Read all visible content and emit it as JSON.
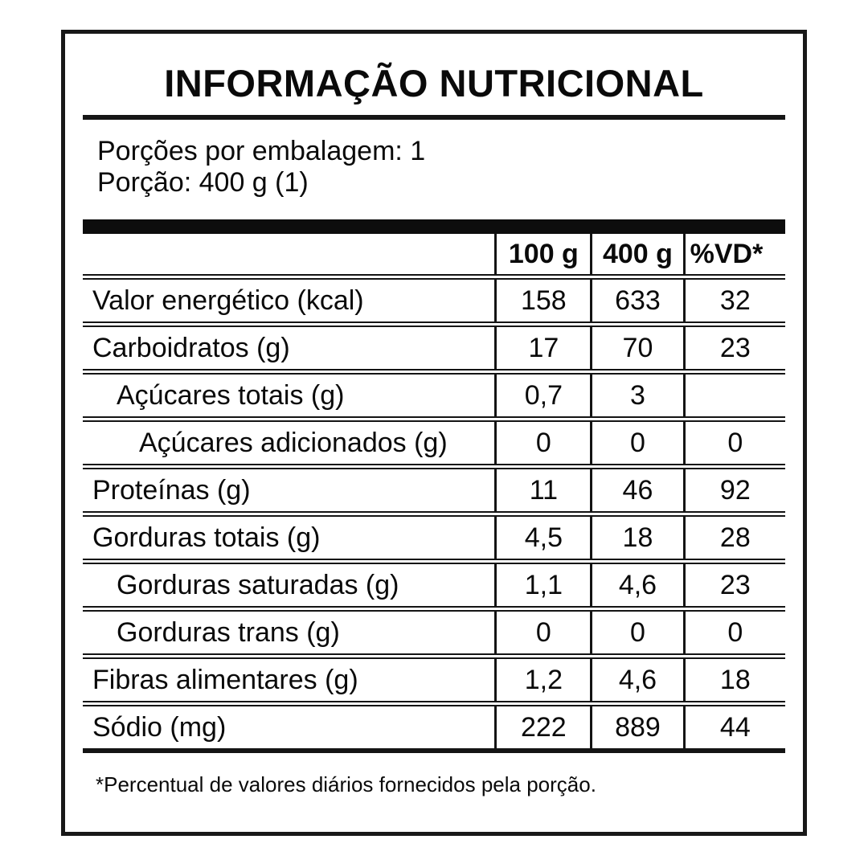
{
  "title": "INFORMAÇÃO NUTRICIONAL",
  "serving_info": {
    "servings_per_package": "Porções por embalagem: 1",
    "serving_size": "Porção: 400 g (1)"
  },
  "table": {
    "columns": [
      "",
      "100 g",
      "400 g",
      "%VD*"
    ],
    "rows": [
      {
        "label": "Valor energético (kcal)",
        "indent": 0,
        "per_100g": "158",
        "per_400g": "633",
        "pct_vd": "32"
      },
      {
        "label": "Carboidratos (g)",
        "indent": 0,
        "per_100g": "17",
        "per_400g": "70",
        "pct_vd": "23"
      },
      {
        "label": "Açúcares totais (g)",
        "indent": 1,
        "per_100g": "0,7",
        "per_400g": "3",
        "pct_vd": ""
      },
      {
        "label": "Açúcares adicionados (g)",
        "indent": 2,
        "per_100g": "0",
        "per_400g": "0",
        "pct_vd": "0"
      },
      {
        "label": "Proteínas (g)",
        "indent": 0,
        "per_100g": "11",
        "per_400g": "46",
        "pct_vd": "92"
      },
      {
        "label": "Gorduras totais (g)",
        "indent": 0,
        "per_100g": "4,5",
        "per_400g": "18",
        "pct_vd": "28"
      },
      {
        "label": "Gorduras saturadas (g)",
        "indent": 1,
        "per_100g": "1,1",
        "per_400g": "4,6",
        "pct_vd": "23"
      },
      {
        "label": "Gorduras trans (g)",
        "indent": 1,
        "per_100g": "0",
        "per_400g": "0",
        "pct_vd": "0"
      },
      {
        "label": "Fibras alimentares (g)",
        "indent": 0,
        "per_100g": "1,2",
        "per_400g": "4,6",
        "pct_vd": "18"
      },
      {
        "label": "Sódio (mg)",
        "indent": 0,
        "per_100g": "222",
        "per_400g": "889",
        "pct_vd": "44"
      }
    ]
  },
  "footnote": "*Percentual de valores diários fornecidos pela porção.",
  "colors": {
    "ink": "#141414",
    "background": "#ffffff"
  }
}
